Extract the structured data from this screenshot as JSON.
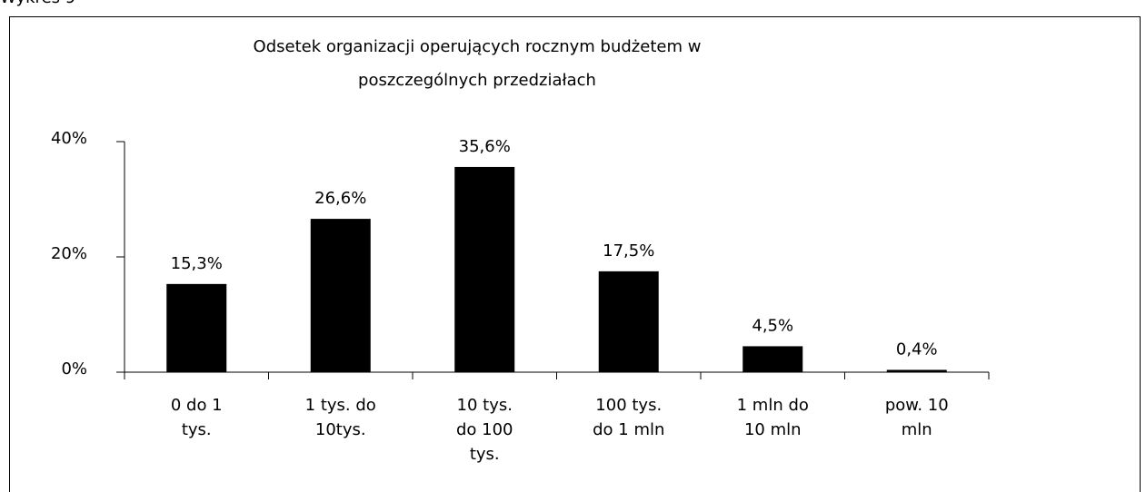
{
  "caption": "Wykres 9",
  "chart_data": {
    "type": "bar",
    "title": "Odsetek organizacji operujących rocznym budżetem  w\nposzczególnych przedziałach",
    "categories": [
      "0 do 1\ntys.",
      "1 tys. do\n10tys.",
      "10 tys.\ndo 100\ntys.",
      "100 tys.\ndo 1 mln",
      "1 mln do\n10 mln",
      "pow. 10\nmln"
    ],
    "values": [
      15.3,
      26.6,
      35.6,
      17.5,
      4.5,
      0.4
    ],
    "value_labels": [
      "15,3%",
      "26,6%",
      "35,6%",
      "17,5%",
      "4,5%",
      "0,4%"
    ],
    "color": "#000000",
    "ylim": [
      0,
      40
    ],
    "yticks": [
      {
        "value": 0,
        "label": "0%"
      },
      {
        "value": 20,
        "label": "20%"
      },
      {
        "value": 40,
        "label": "40%"
      }
    ]
  }
}
